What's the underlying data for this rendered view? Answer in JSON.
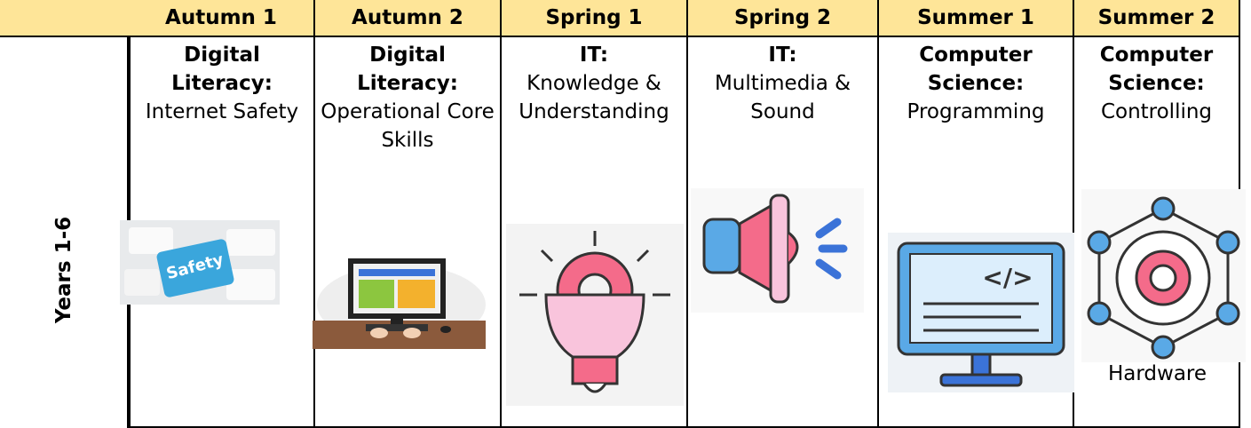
{
  "table": {
    "row_label": "Years 1-6",
    "header": [
      "Autumn 1",
      "Autumn 2",
      "Spring 1",
      "Spring 2",
      "Summer 1",
      "Summer 2"
    ],
    "cells": [
      {
        "subject": "Digital Literacy:",
        "topic": "Internet Safety"
      },
      {
        "subject": "Digital Literacy:",
        "topic": "Operational Core Skills"
      },
      {
        "subject": "IT:",
        "topic": "Knowledge & Understanding"
      },
      {
        "subject": "IT:",
        "topic": "Multimedia & Sound"
      },
      {
        "subject": "Computer Science:",
        "topic": "Programming"
      },
      {
        "subject": "Computer Science:",
        "topic": "Controlling",
        "note": "Hardware"
      }
    ]
  }
}
